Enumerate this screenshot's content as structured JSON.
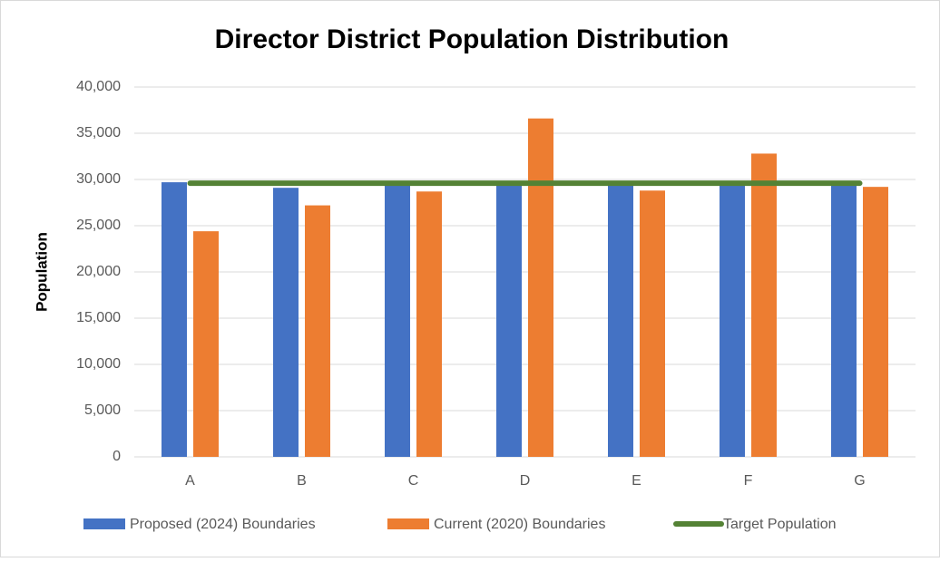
{
  "chart_data": {
    "type": "bar",
    "title": "Director District Population Distribution",
    "y_label": "Population",
    "categories": [
      "A",
      "B",
      "C",
      "D",
      "E",
      "F",
      "G"
    ],
    "series": [
      {
        "name": "Proposed (2024) Boundaries",
        "color": "#4472c4",
        "type": "bar",
        "values": [
          29700,
          29100,
          29600,
          29600,
          29600,
          29600,
          29600
        ]
      },
      {
        "name": "Current (2020) Boundaries",
        "color": "#ed7d31",
        "type": "bar",
        "values": [
          24400,
          27200,
          28700,
          36600,
          28800,
          32800,
          29200
        ]
      },
      {
        "name": "Target Population",
        "color": "#548235",
        "type": "line",
        "values": [
          29600,
          29600,
          29600,
          29600,
          29600,
          29600,
          29600
        ]
      }
    ],
    "ylim": [
      0,
      40000
    ],
    "yticks": [
      0,
      {
        "value": 5000,
        "label": "5,000"
      },
      {
        "value": 10000,
        "label": "10,000"
      },
      {
        "value": 15000,
        "label": "15,000"
      },
      {
        "value": 20000,
        "label": "20,000"
      },
      {
        "value": 25000,
        "label": "25,000"
      },
      {
        "value": 30000,
        "label": "30,000"
      },
      {
        "value": 35000,
        "label": "35,000"
      },
      {
        "value": 40000,
        "label": "40,000"
      }
    ],
    "grid": true,
    "legend": "bottom"
  }
}
